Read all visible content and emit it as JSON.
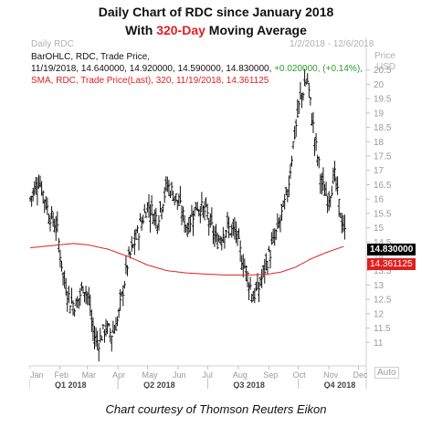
{
  "header": {
    "title_line1": "Daily Chart of RDC since January 2018",
    "title_line2_pre": "With ",
    "title_line2_hl": "320-Day",
    "title_line2_post": " Moving Average"
  },
  "caption": "Chart courtesy of Thomson Reuters Eikon",
  "panel": {
    "name": "Daily RDC",
    "date_range": "1/2/2018 - 12/6/2018",
    "price_label": "Price",
    "currency_label": "USD",
    "auto_label": "Auto"
  },
  "legend": {
    "ohlc_name": "BarOHLC, RDC, Trade Price,",
    "ohlc_values": "11/19/2018, 14.640000, 14.920000, 14.590000, 14.830000,",
    "ohlc_change": "+0.020000, (+0.14%),",
    "sma_text": "SMA, RDC, Trade Price(Last), 320, 11/19/2018, 14.361125"
  },
  "labels": {
    "last_price": "14.830000",
    "sma_value": "14.361125"
  },
  "colors": {
    "bars": "#111111",
    "sma": "#e02020",
    "change": "#2e9a2e",
    "label_price_bg": "#000000",
    "label_sma_bg": "#e02020"
  },
  "chart_data": {
    "type": "line",
    "title": "Daily Chart of RDC since January 2018",
    "ylim": [
      10.5,
      21.0
    ],
    "y_ticks": [
      "11",
      "11.5",
      "12",
      "12.5",
      "13",
      "13.5",
      "14",
      "14.5",
      "15",
      "15.5",
      "16",
      "16.5",
      "17",
      "17.5",
      "18",
      "18.5",
      "19",
      "19.5",
      "20",
      "20.5"
    ],
    "x_month_labels": [
      "Jan",
      "Feb",
      "Mar",
      "Apr",
      "May",
      "Jun",
      "Jul",
      "Aug",
      "Sep",
      "Oct",
      "Nov",
      "Dec"
    ],
    "x_quarter_labels": [
      "Q1 2018",
      "Q2 2018",
      "Q3 2018",
      "Q4 2018"
    ],
    "grid": false,
    "series": [
      {
        "name": "BarOHLC, RDC, Trade Price",
        "kind": "ohlc_closes",
        "x_days": [
          1,
          10,
          20,
          28,
          35,
          42,
          48,
          55,
          60,
          65,
          70,
          77,
          84,
          90,
          100,
          110,
          120,
          130,
          140,
          150,
          160,
          170,
          180,
          190,
          200,
          210,
          215,
          220,
          227,
          233,
          240,
          248,
          255,
          262,
          268,
          275,
          282,
          290,
          297,
          303,
          310,
          315,
          320
        ],
        "values": [
          16.0,
          16.7,
          15.5,
          15.0,
          13.2,
          12.4,
          12.3,
          13.0,
          12.6,
          11.3,
          11.0,
          11.5,
          11.3,
          11.8,
          13.8,
          14.8,
          15.8,
          15.3,
          16.5,
          16.0,
          15.0,
          15.8,
          15.5,
          14.5,
          15.0,
          14.8,
          14.0,
          13.5,
          12.6,
          12.9,
          13.7,
          14.5,
          15.3,
          16.2,
          18.0,
          19.5,
          20.2,
          18.0,
          16.5,
          16.0,
          16.8,
          15.6,
          14.8
        ]
      },
      {
        "name": "SMA, RDC, Trade Price(Last), 320",
        "kind": "moving_average",
        "x_days": [
          1,
          15,
          30,
          45,
          60,
          80,
          100,
          120,
          140,
          160,
          180,
          200,
          220,
          240,
          255,
          270,
          285,
          300,
          320
        ],
        "values": [
          14.3,
          14.35,
          14.4,
          14.45,
          14.4,
          14.25,
          14.0,
          13.7,
          13.5,
          13.42,
          13.38,
          13.35,
          13.35,
          13.37,
          13.45,
          13.62,
          13.9,
          14.12,
          14.36
        ]
      }
    ]
  }
}
